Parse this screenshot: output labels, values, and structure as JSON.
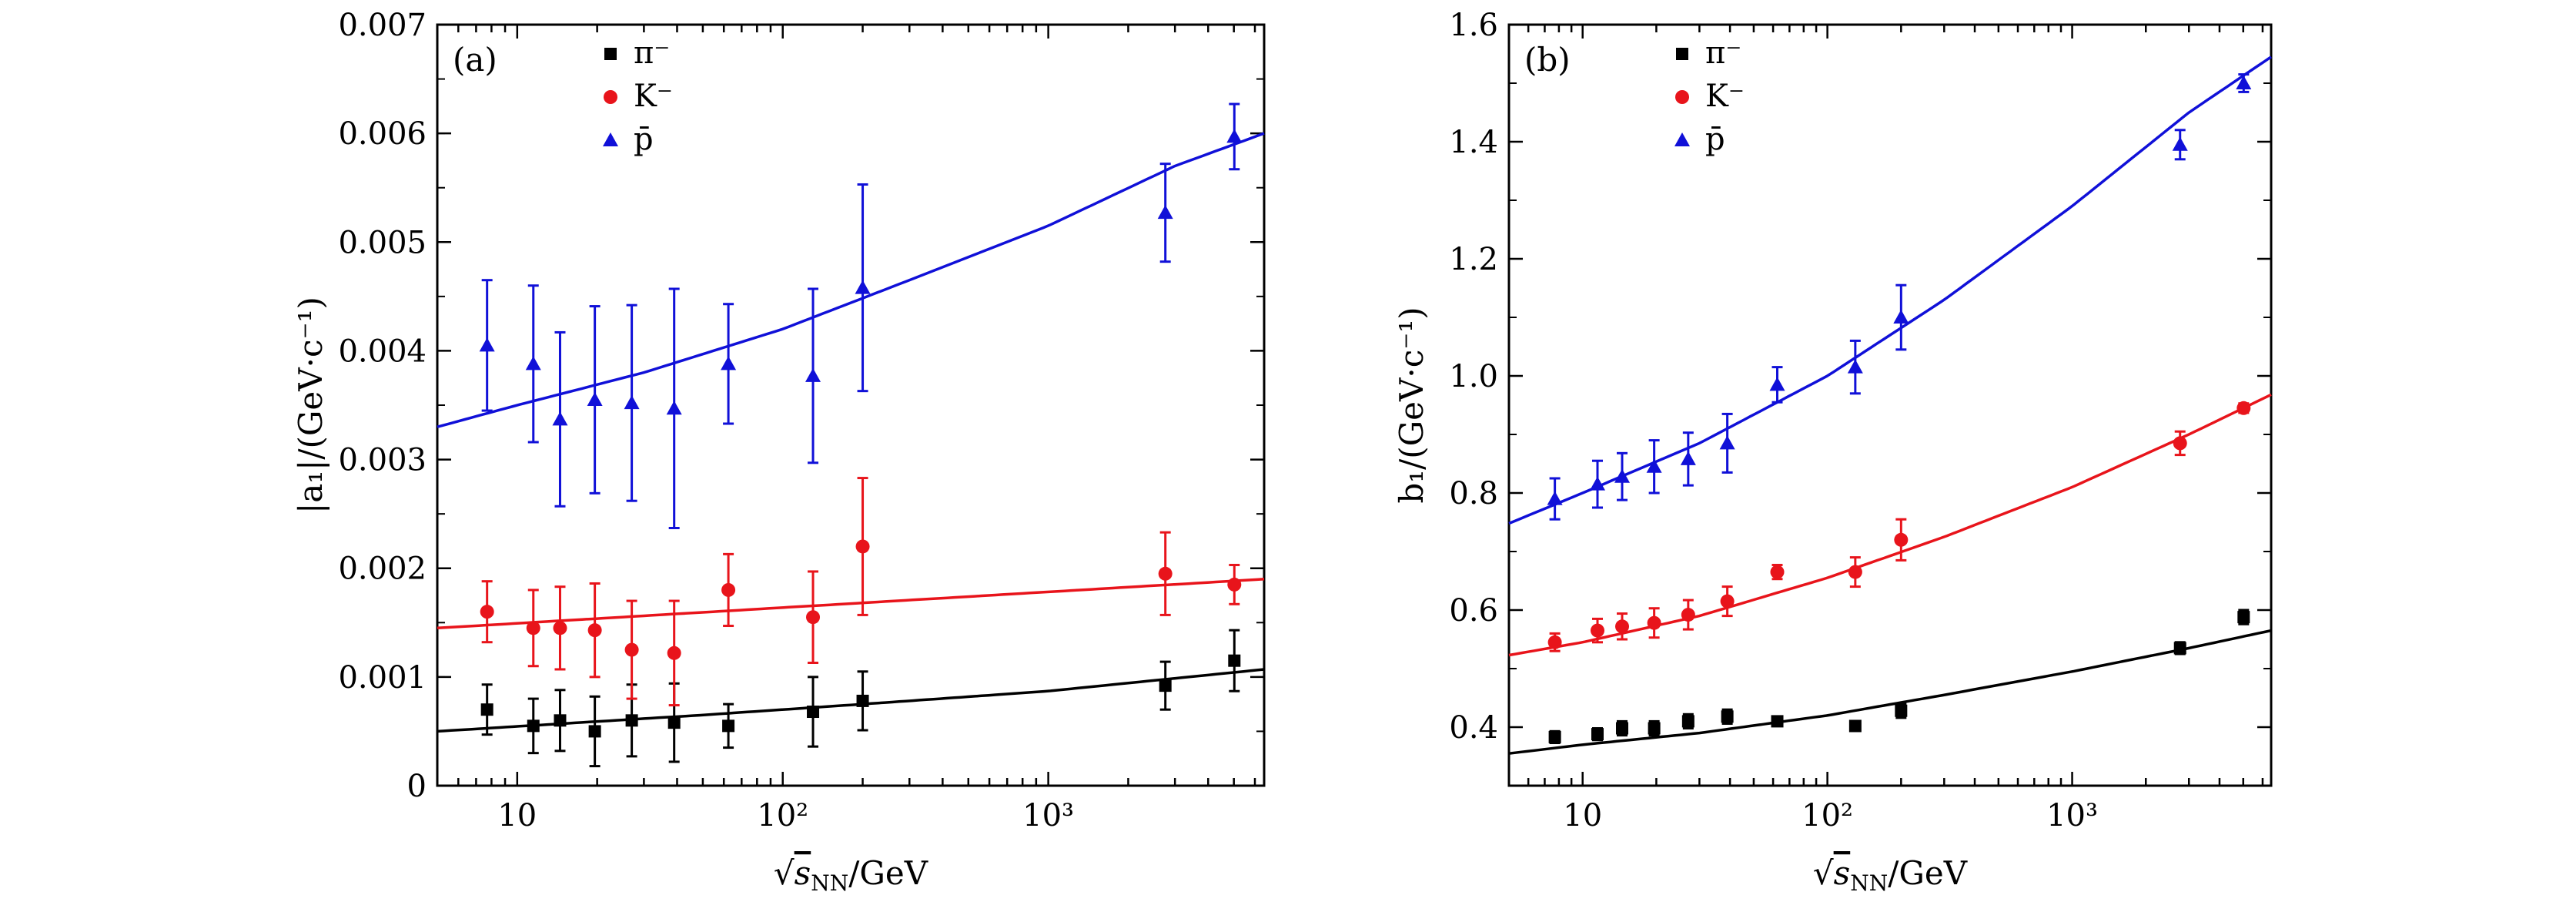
{
  "chart_data": [
    {
      "type": "scatter",
      "tag": "(a)",
      "xlabel_prefix": "√",
      "xlabel_var": "s",
      "xlabel_sub": "NN",
      "xlabel_suffix": "/GeV",
      "ylabel": "|a₁|/(GeV·c⁻¹)",
      "xscale": "log",
      "xlim": [
        5,
        6500
      ],
      "ylim": [
        0,
        0.007
      ],
      "x_ticks": [
        {
          "v": 10,
          "label": "10"
        },
        {
          "v": 100,
          "label": "10²"
        },
        {
          "v": 1000,
          "label": "10³"
        }
      ],
      "y_ticks": [
        {
          "v": 0,
          "label": "0"
        },
        {
          "v": 0.001,
          "label": "0.001"
        },
        {
          "v": 0.002,
          "label": "0.002"
        },
        {
          "v": 0.003,
          "label": "0.003"
        },
        {
          "v": 0.004,
          "label": "0.004"
        },
        {
          "v": 0.005,
          "label": "0.005"
        },
        {
          "v": 0.006,
          "label": "0.006"
        },
        {
          "v": 0.007,
          "label": "0.007"
        }
      ],
      "legend_position": "top-left",
      "series": [
        {
          "name": "π⁻",
          "marker": "square",
          "color": "#000000",
          "x": [
            7.7,
            11.5,
            14.5,
            19.6,
            27,
            39,
            62.4,
            130,
            200,
            2760,
            5020
          ],
          "y": [
            0.0007,
            0.00055,
            0.0006,
            0.0005,
            0.0006,
            0.00058,
            0.00055,
            0.00068,
            0.00078,
            0.00092,
            0.00115
          ],
          "err": [
            0.00023,
            0.00025,
            0.00028,
            0.00032,
            0.00033,
            0.00036,
            0.0002,
            0.00032,
            0.00027,
            0.00022,
            0.00028
          ],
          "fit": {
            "x": [
              5,
              50,
              200,
              1000,
              6500
            ],
            "y": [
              0.0005,
              0.00065,
              0.00075,
              0.00087,
              0.00107
            ]
          }
        },
        {
          "name": "K⁻",
          "marker": "circle",
          "color": "#e8141b",
          "x": [
            7.7,
            11.5,
            14.5,
            19.6,
            27,
            39,
            62.4,
            130,
            200,
            2760,
            5020
          ],
          "y": [
            0.0016,
            0.00145,
            0.00145,
            0.00143,
            0.00125,
            0.00122,
            0.0018,
            0.00155,
            0.0022,
            0.00195,
            0.00185
          ],
          "err": [
            0.00028,
            0.00035,
            0.00038,
            0.00043,
            0.00045,
            0.00048,
            0.00033,
            0.00042,
            0.00063,
            0.00038,
            0.00018
          ],
          "fit": {
            "x": [
              5,
              6500
            ],
            "y": [
              0.00145,
              0.0019
            ]
          }
        },
        {
          "name": "p̄",
          "marker": "triangle",
          "color": "#1010d8",
          "x": [
            7.7,
            11.5,
            14.5,
            19.6,
            27,
            39,
            62.4,
            130,
            200,
            2760,
            5020
          ],
          "y": [
            0.00405,
            0.00388,
            0.00337,
            0.00355,
            0.00352,
            0.00347,
            0.00388,
            0.00377,
            0.00458,
            0.00527,
            0.00597
          ],
          "err": [
            0.0006,
            0.00072,
            0.0008,
            0.00086,
            0.0009,
            0.0011,
            0.00055,
            0.0008,
            0.00095,
            0.00045,
            0.0003
          ],
          "fit": {
            "x": [
              5,
              10,
              30,
              100,
              300,
              1000,
              3000,
              6500
            ],
            "y": [
              0.0033,
              0.0035,
              0.0038,
              0.0042,
              0.00465,
              0.00515,
              0.0057,
              0.006
            ]
          }
        }
      ]
    },
    {
      "type": "scatter",
      "tag": "(b)",
      "xlabel_prefix": "√",
      "xlabel_var": "s",
      "xlabel_sub": "NN",
      "xlabel_suffix": "/GeV",
      "ylabel": "b₁/(GeV·c⁻¹)",
      "xscale": "log",
      "xlim": [
        5,
        6500
      ],
      "ylim": [
        0.3,
        1.6
      ],
      "x_ticks": [
        {
          "v": 10,
          "label": "10"
        },
        {
          "v": 100,
          "label": "10²"
        },
        {
          "v": 1000,
          "label": "10³"
        }
      ],
      "y_ticks": [
        {
          "v": 0.4,
          "label": "0.4"
        },
        {
          "v": 0.6,
          "label": "0.6"
        },
        {
          "v": 0.8,
          "label": "0.8"
        },
        {
          "v": 1.0,
          "label": "1.0"
        },
        {
          "v": 1.2,
          "label": "1.2"
        },
        {
          "v": 1.4,
          "label": "1.4"
        },
        {
          "v": 1.6,
          "label": "1.6"
        }
      ],
      "legend_position": "top-left",
      "series": [
        {
          "name": "π⁻",
          "marker": "square",
          "color": "#000000",
          "x": [
            7.7,
            11.5,
            14.5,
            19.6,
            27,
            39,
            62.4,
            130,
            200,
            2760,
            5020
          ],
          "y": [
            0.383,
            0.388,
            0.398,
            0.398,
            0.41,
            0.418,
            0.41,
            0.402,
            0.428,
            0.535,
            0.588
          ],
          "err": [
            0.01,
            0.01,
            0.012,
            0.012,
            0.012,
            0.012,
            0.008,
            0.008,
            0.012,
            0.01,
            0.012
          ],
          "fit": {
            "x": [
              5,
              10,
              30,
              100,
              300,
              1000,
              3000,
              6500
            ],
            "y": [
              0.355,
              0.37,
              0.39,
              0.42,
              0.455,
              0.495,
              0.535,
              0.565
            ]
          }
        },
        {
          "name": "K⁻",
          "marker": "circle",
          "color": "#e8141b",
          "x": [
            7.7,
            11.5,
            14.5,
            19.6,
            27,
            39,
            62.4,
            130,
            200,
            2760,
            5020
          ],
          "y": [
            0.545,
            0.565,
            0.572,
            0.578,
            0.592,
            0.615,
            0.665,
            0.665,
            0.72,
            0.885,
            0.945
          ],
          "err": [
            0.015,
            0.02,
            0.022,
            0.025,
            0.025,
            0.025,
            0.012,
            0.025,
            0.035,
            0.02,
            0.008
          ],
          "fit": {
            "x": [
              5,
              10,
              30,
              100,
              300,
              1000,
              3000,
              6500
            ],
            "y": [
              0.523,
              0.545,
              0.59,
              0.655,
              0.725,
              0.81,
              0.9,
              0.968
            ]
          }
        },
        {
          "name": "p̄",
          "marker": "triangle",
          "color": "#1010d8",
          "x": [
            7.7,
            11.5,
            14.5,
            19.6,
            27,
            39,
            62.4,
            130,
            200,
            2760,
            5020
          ],
          "y": [
            0.79,
            0.815,
            0.828,
            0.845,
            0.858,
            0.885,
            0.985,
            1.015,
            1.1,
            1.395,
            1.5
          ],
          "err": [
            0.035,
            0.04,
            0.04,
            0.045,
            0.045,
            0.05,
            0.03,
            0.045,
            0.055,
            0.025,
            0.015
          ],
          "fit": {
            "x": [
              5,
              10,
              30,
              100,
              300,
              1000,
              3000,
              6500
            ],
            "y": [
              0.748,
              0.8,
              0.885,
              1.0,
              1.13,
              1.29,
              1.45,
              1.545
            ]
          }
        }
      ]
    }
  ]
}
